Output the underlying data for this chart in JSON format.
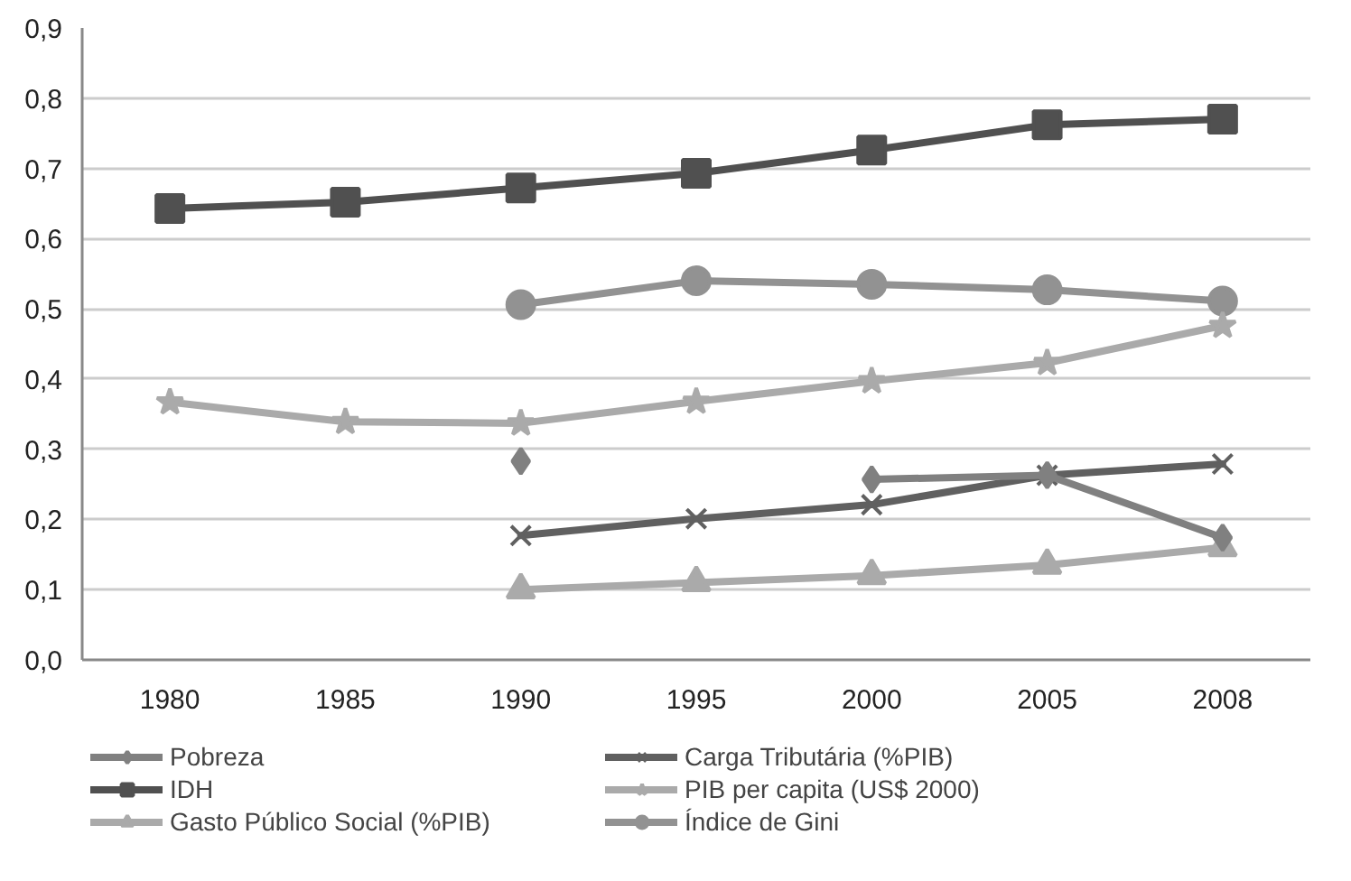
{
  "chart_data": {
    "type": "line",
    "categories": [
      "1980",
      "1985",
      "1990",
      "1995",
      "2000",
      "2005",
      "2008"
    ],
    "ylim": [
      0,
      0.9
    ],
    "yticks": [
      {
        "value": 0,
        "label": "0,0"
      },
      {
        "value": 0.1,
        "label": "0,1"
      },
      {
        "value": 0.2,
        "label": "0,2"
      },
      {
        "value": 0.3,
        "label": "0,3"
      },
      {
        "value": 0.4,
        "label": "0,4"
      },
      {
        "value": 0.5,
        "label": "0,5"
      },
      {
        "value": 0.6,
        "label": "0,6"
      },
      {
        "value": 0.7,
        "label": "0,7"
      },
      {
        "value": 0.8,
        "label": "0,8"
      },
      {
        "value": 0.9,
        "label": "0,9"
      }
    ],
    "grid": "y",
    "legend": "bottom",
    "series": [
      {
        "name": "Pobreza",
        "color": "#808080",
        "marker": "diamond",
        "values": [
          null,
          null,
          0.283,
          null,
          0.257,
          0.263,
          0.174
        ]
      },
      {
        "name": "IDH",
        "color": "#505050",
        "marker": "square",
        "values": [
          0.643,
          0.652,
          0.672,
          0.693,
          0.726,
          0.762,
          0.77
        ]
      },
      {
        "name": "Gasto Público Social (%PIB)",
        "color": "#aaaaaa",
        "marker": "triangle",
        "values": [
          null,
          null,
          0.1,
          0.11,
          0.12,
          0.135,
          0.16
        ]
      },
      {
        "name": "Carga Tributária (%PIB)",
        "color": "#606060",
        "marker": "cross",
        "values": [
          null,
          null,
          0.177,
          0.201,
          0.221,
          0.263,
          0.279
        ]
      },
      {
        "name": "PIB per capita (US$ 2000)",
        "color": "#aaaaaa",
        "marker": "star",
        "values": [
          0.367,
          0.339,
          0.337,
          0.368,
          0.397,
          0.423,
          0.476
        ]
      },
      {
        "name": "Índice de Gini",
        "color": "#929292",
        "marker": "circle",
        "values": [
          null,
          null,
          0.506,
          0.54,
          0.535,
          0.527,
          0.511
        ]
      }
    ]
  }
}
